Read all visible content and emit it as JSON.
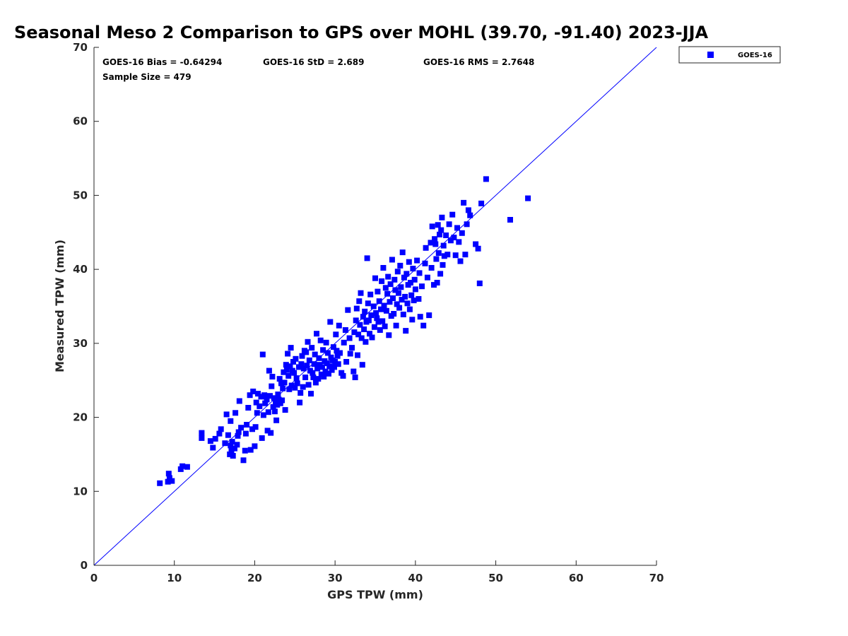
{
  "chart_data": {
    "type": "scatter",
    "title": "Seasonal Meso 2 Comparison to GPS over MOHL (39.70, -91.40) 2023-JJA",
    "xlabel": "GPS TPW (mm)",
    "ylabel": "Measured TPW (mm)",
    "xlim": [
      0,
      70
    ],
    "ylim": [
      0,
      70
    ],
    "xticks": [
      "0",
      "10",
      "20",
      "30",
      "40",
      "50",
      "60",
      "70"
    ],
    "yticks": [
      "0",
      "10",
      "20",
      "30",
      "40",
      "50",
      "60",
      "70"
    ],
    "grid": false,
    "legend": {
      "position": "outside-top-right",
      "entries": [
        "GOES-16"
      ]
    },
    "color": "#0000ff",
    "stats": {
      "bias": "GOES-16 Bias = -0.64294",
      "std": "GOES-16 StD = 2.689",
      "rms": "GOES-16 RMS = 2.7648",
      "sample": "Sample Size = 479"
    },
    "reference_line": {
      "name": "1:1 line",
      "x": [
        0,
        70
      ],
      "y": [
        0,
        70
      ]
    },
    "series": [
      {
        "name": "GOES-16",
        "points": [
          [
            8.2,
            11.1
          ],
          [
            9.2,
            11.3
          ],
          [
            9.4,
            11.8
          ],
          [
            9.7,
            11.4
          ],
          [
            9.3,
            12.4
          ],
          [
            10.8,
            13.0
          ],
          [
            11.0,
            13.4
          ],
          [
            11.6,
            13.3
          ],
          [
            13.4,
            17.2
          ],
          [
            13.4,
            17.9
          ],
          [
            14.5,
            16.8
          ],
          [
            14.8,
            15.9
          ],
          [
            15.1,
            17.1
          ],
          [
            15.6,
            17.8
          ],
          [
            15.8,
            18.4
          ],
          [
            16.3,
            16.5
          ],
          [
            16.5,
            20.4
          ],
          [
            16.7,
            17.6
          ],
          [
            16.9,
            15.0
          ],
          [
            17.0,
            16.2
          ],
          [
            17.0,
            19.5
          ],
          [
            17.1,
            15.5
          ],
          [
            17.2,
            16.7
          ],
          [
            17.3,
            14.8
          ],
          [
            17.5,
            15.8
          ],
          [
            17.6,
            20.6
          ],
          [
            17.8,
            16.3
          ],
          [
            17.9,
            17.5
          ],
          [
            18.0,
            18.0
          ],
          [
            18.1,
            22.2
          ],
          [
            18.3,
            18.6
          ],
          [
            18.6,
            14.2
          ],
          [
            18.8,
            15.5
          ],
          [
            18.9,
            17.8
          ],
          [
            19.0,
            19.0
          ],
          [
            19.2,
            21.3
          ],
          [
            19.4,
            23.0
          ],
          [
            19.5,
            15.6
          ],
          [
            19.7,
            18.4
          ],
          [
            19.8,
            23.5
          ],
          [
            20.0,
            16.1
          ],
          [
            20.1,
            18.7
          ],
          [
            20.2,
            22.0
          ],
          [
            20.3,
            20.6
          ],
          [
            20.4,
            23.2
          ],
          [
            20.6,
            21.5
          ],
          [
            20.8,
            22.8
          ],
          [
            20.9,
            17.2
          ],
          [
            21.0,
            28.5
          ],
          [
            21.1,
            20.3
          ],
          [
            21.2,
            23.0
          ],
          [
            21.3,
            21.9
          ],
          [
            21.5,
            22.4
          ],
          [
            21.6,
            18.2
          ],
          [
            21.7,
            20.7
          ],
          [
            21.8,
            26.3
          ],
          [
            21.9,
            22.9
          ],
          [
            22.0,
            17.9
          ],
          [
            22.1,
            24.2
          ],
          [
            22.2,
            25.5
          ],
          [
            22.3,
            21.4
          ],
          [
            22.4,
            22.6
          ],
          [
            22.5,
            20.8
          ],
          [
            22.6,
            22.1
          ],
          [
            22.7,
            19.6
          ],
          [
            22.8,
            21.7
          ],
          [
            22.9,
            23.1
          ],
          [
            23.0,
            22.4
          ],
          [
            23.1,
            25.2
          ],
          [
            23.2,
            21.9
          ],
          [
            23.3,
            24.6
          ],
          [
            23.4,
            22.3
          ],
          [
            23.5,
            23.9
          ],
          [
            23.6,
            26.1
          ],
          [
            23.7,
            24.7
          ],
          [
            23.8,
            21.0
          ],
          [
            23.9,
            27.1
          ],
          [
            24.0,
            26.4
          ],
          [
            24.1,
            28.6
          ],
          [
            24.2,
            25.6
          ],
          [
            24.3,
            23.8
          ],
          [
            24.4,
            26.9
          ],
          [
            24.5,
            29.4
          ],
          [
            24.6,
            24.3
          ],
          [
            24.7,
            26.3
          ],
          [
            24.8,
            27.5
          ],
          [
            24.9,
            26.0
          ],
          [
            25.0,
            24.0
          ],
          [
            25.1,
            27.9
          ],
          [
            25.2,
            25.3
          ],
          [
            25.3,
            24.6
          ],
          [
            25.5,
            26.8
          ],
          [
            25.6,
            22.0
          ],
          [
            25.7,
            23.3
          ],
          [
            25.8,
            27.2
          ],
          [
            25.9,
            28.3
          ],
          [
            26.0,
            24.1
          ],
          [
            26.1,
            26.6
          ],
          [
            26.2,
            29.0
          ],
          [
            26.3,
            25.4
          ],
          [
            26.4,
            28.8
          ],
          [
            26.5,
            27.0
          ],
          [
            26.6,
            30.2
          ],
          [
            26.7,
            24.4
          ],
          [
            26.8,
            27.7
          ],
          [
            26.9,
            26.3
          ],
          [
            27.0,
            23.2
          ],
          [
            27.1,
            29.4
          ],
          [
            27.2,
            26.0
          ],
          [
            27.3,
            25.4
          ],
          [
            27.4,
            27.2
          ],
          [
            27.5,
            28.5
          ],
          [
            27.6,
            24.7
          ],
          [
            27.7,
            31.3
          ],
          [
            27.8,
            26.6
          ],
          [
            27.9,
            25.2
          ],
          [
            28.0,
            28.0
          ],
          [
            28.1,
            27.1
          ],
          [
            28.2,
            30.4
          ],
          [
            28.3,
            25.8
          ],
          [
            28.4,
            26.8
          ],
          [
            28.5,
            29.1
          ],
          [
            28.6,
            25.5
          ],
          [
            28.7,
            27.6
          ],
          [
            28.8,
            26.2
          ],
          [
            28.9,
            30.1
          ],
          [
            29.0,
            27.3
          ],
          [
            29.1,
            28.7
          ],
          [
            29.2,
            25.9
          ],
          [
            29.3,
            26.9
          ],
          [
            29.4,
            32.9
          ],
          [
            29.5,
            28.1
          ],
          [
            29.6,
            26.4
          ],
          [
            29.7,
            27.7
          ],
          [
            29.8,
            29.5
          ],
          [
            29.9,
            26.8
          ],
          [
            30.0,
            27.5
          ],
          [
            30.1,
            31.2
          ],
          [
            30.2,
            29.0
          ],
          [
            30.3,
            28.3
          ],
          [
            30.4,
            27.2
          ],
          [
            30.5,
            32.4
          ],
          [
            30.6,
            28.7
          ],
          [
            30.8,
            26.0
          ],
          [
            31.0,
            25.6
          ],
          [
            31.1,
            30.1
          ],
          [
            31.3,
            31.8
          ],
          [
            31.4,
            27.5
          ],
          [
            31.6,
            34.5
          ],
          [
            31.8,
            30.7
          ],
          [
            31.9,
            28.6
          ],
          [
            32.1,
            29.4
          ],
          [
            32.3,
            26.2
          ],
          [
            32.4,
            31.5
          ],
          [
            32.5,
            25.4
          ],
          [
            32.6,
            33.1
          ],
          [
            32.7,
            34.7
          ],
          [
            32.8,
            28.4
          ],
          [
            32.9,
            31.2
          ],
          [
            33.0,
            35.7
          ],
          [
            33.1,
            32.5
          ],
          [
            33.2,
            36.8
          ],
          [
            33.3,
            30.7
          ],
          [
            33.4,
            27.1
          ],
          [
            33.5,
            33.6
          ],
          [
            33.6,
            31.9
          ],
          [
            33.7,
            34.3
          ],
          [
            33.8,
            30.2
          ],
          [
            33.9,
            32.9
          ],
          [
            34.0,
            41.5
          ],
          [
            34.1,
            35.4
          ],
          [
            34.2,
            33.1
          ],
          [
            34.3,
            31.3
          ],
          [
            34.4,
            36.6
          ],
          [
            34.5,
            33.8
          ],
          [
            34.6,
            30.8
          ],
          [
            34.8,
            35.0
          ],
          [
            34.9,
            32.2
          ],
          [
            35.0,
            38.8
          ],
          [
            35.1,
            34.1
          ],
          [
            35.2,
            33.4
          ],
          [
            35.3,
            37.0
          ],
          [
            35.4,
            32.9
          ],
          [
            35.5,
            35.7
          ],
          [
            35.6,
            31.8
          ],
          [
            35.7,
            34.6
          ],
          [
            35.8,
            38.4
          ],
          [
            35.9,
            33.0
          ],
          [
            36.0,
            40.2
          ],
          [
            36.1,
            35.1
          ],
          [
            36.2,
            32.3
          ],
          [
            36.3,
            37.5
          ],
          [
            36.4,
            34.4
          ],
          [
            36.5,
            36.7
          ],
          [
            36.6,
            39.0
          ],
          [
            36.7,
            31.1
          ],
          [
            36.8,
            35.6
          ],
          [
            36.9,
            38.0
          ],
          [
            37.0,
            33.7
          ],
          [
            37.1,
            41.3
          ],
          [
            37.2,
            36.1
          ],
          [
            37.3,
            34.0
          ],
          [
            37.4,
            38.6
          ],
          [
            37.5,
            37.2
          ],
          [
            37.6,
            32.4
          ],
          [
            37.7,
            35.3
          ],
          [
            37.8,
            39.7
          ],
          [
            37.9,
            36.8
          ],
          [
            38.0,
            34.8
          ],
          [
            38.1,
            40.5
          ],
          [
            38.2,
            37.6
          ],
          [
            38.3,
            35.9
          ],
          [
            38.4,
            42.3
          ],
          [
            38.5,
            33.9
          ],
          [
            38.6,
            38.9
          ],
          [
            38.7,
            36.3
          ],
          [
            38.8,
            31.7
          ],
          [
            38.9,
            39.4
          ],
          [
            39.0,
            35.4
          ],
          [
            39.1,
            37.9
          ],
          [
            39.2,
            41.0
          ],
          [
            39.3,
            34.6
          ],
          [
            39.4,
            38.2
          ],
          [
            39.5,
            36.5
          ],
          [
            39.6,
            33.2
          ],
          [
            39.7,
            40.1
          ],
          [
            39.8,
            35.8
          ],
          [
            39.9,
            38.6
          ],
          [
            40.0,
            37.3
          ],
          [
            40.2,
            41.2
          ],
          [
            40.4,
            36.0
          ],
          [
            40.5,
            39.5
          ],
          [
            40.6,
            33.6
          ],
          [
            40.8,
            37.7
          ],
          [
            41.0,
            32.4
          ],
          [
            41.2,
            40.8
          ],
          [
            41.3,
            42.9
          ],
          [
            41.5,
            38.9
          ],
          [
            41.7,
            33.8
          ],
          [
            41.9,
            43.6
          ],
          [
            42.0,
            40.2
          ],
          [
            42.1,
            45.8
          ],
          [
            42.3,
            37.9
          ],
          [
            42.4,
            44.1
          ],
          [
            42.5,
            43.4
          ],
          [
            42.6,
            41.4
          ],
          [
            42.7,
            38.2
          ],
          [
            42.8,
            46.0
          ],
          [
            42.9,
            42.2
          ],
          [
            43.0,
            44.7
          ],
          [
            43.1,
            39.4
          ],
          [
            43.2,
            45.3
          ],
          [
            43.3,
            47.0
          ],
          [
            43.4,
            40.6
          ],
          [
            43.5,
            43.2
          ],
          [
            43.6,
            41.8
          ],
          [
            43.8,
            44.6
          ],
          [
            44.0,
            42.0
          ],
          [
            44.2,
            46.1
          ],
          [
            44.4,
            43.9
          ],
          [
            44.6,
            47.4
          ],
          [
            44.8,
            44.3
          ],
          [
            45.0,
            41.9
          ],
          [
            45.2,
            45.6
          ],
          [
            45.4,
            43.7
          ],
          [
            45.6,
            41.1
          ],
          [
            45.8,
            44.9
          ],
          [
            46.0,
            49.0
          ],
          [
            46.2,
            42.0
          ],
          [
            46.4,
            46.1
          ],
          [
            46.6,
            48.0
          ],
          [
            46.8,
            47.3
          ],
          [
            47.5,
            43.4
          ],
          [
            47.8,
            42.8
          ],
          [
            48.0,
            38.1
          ],
          [
            48.2,
            48.9
          ],
          [
            48.8,
            52.2
          ],
          [
            51.8,
            46.7
          ],
          [
            54.0,
            49.6
          ]
        ]
      }
    ]
  }
}
